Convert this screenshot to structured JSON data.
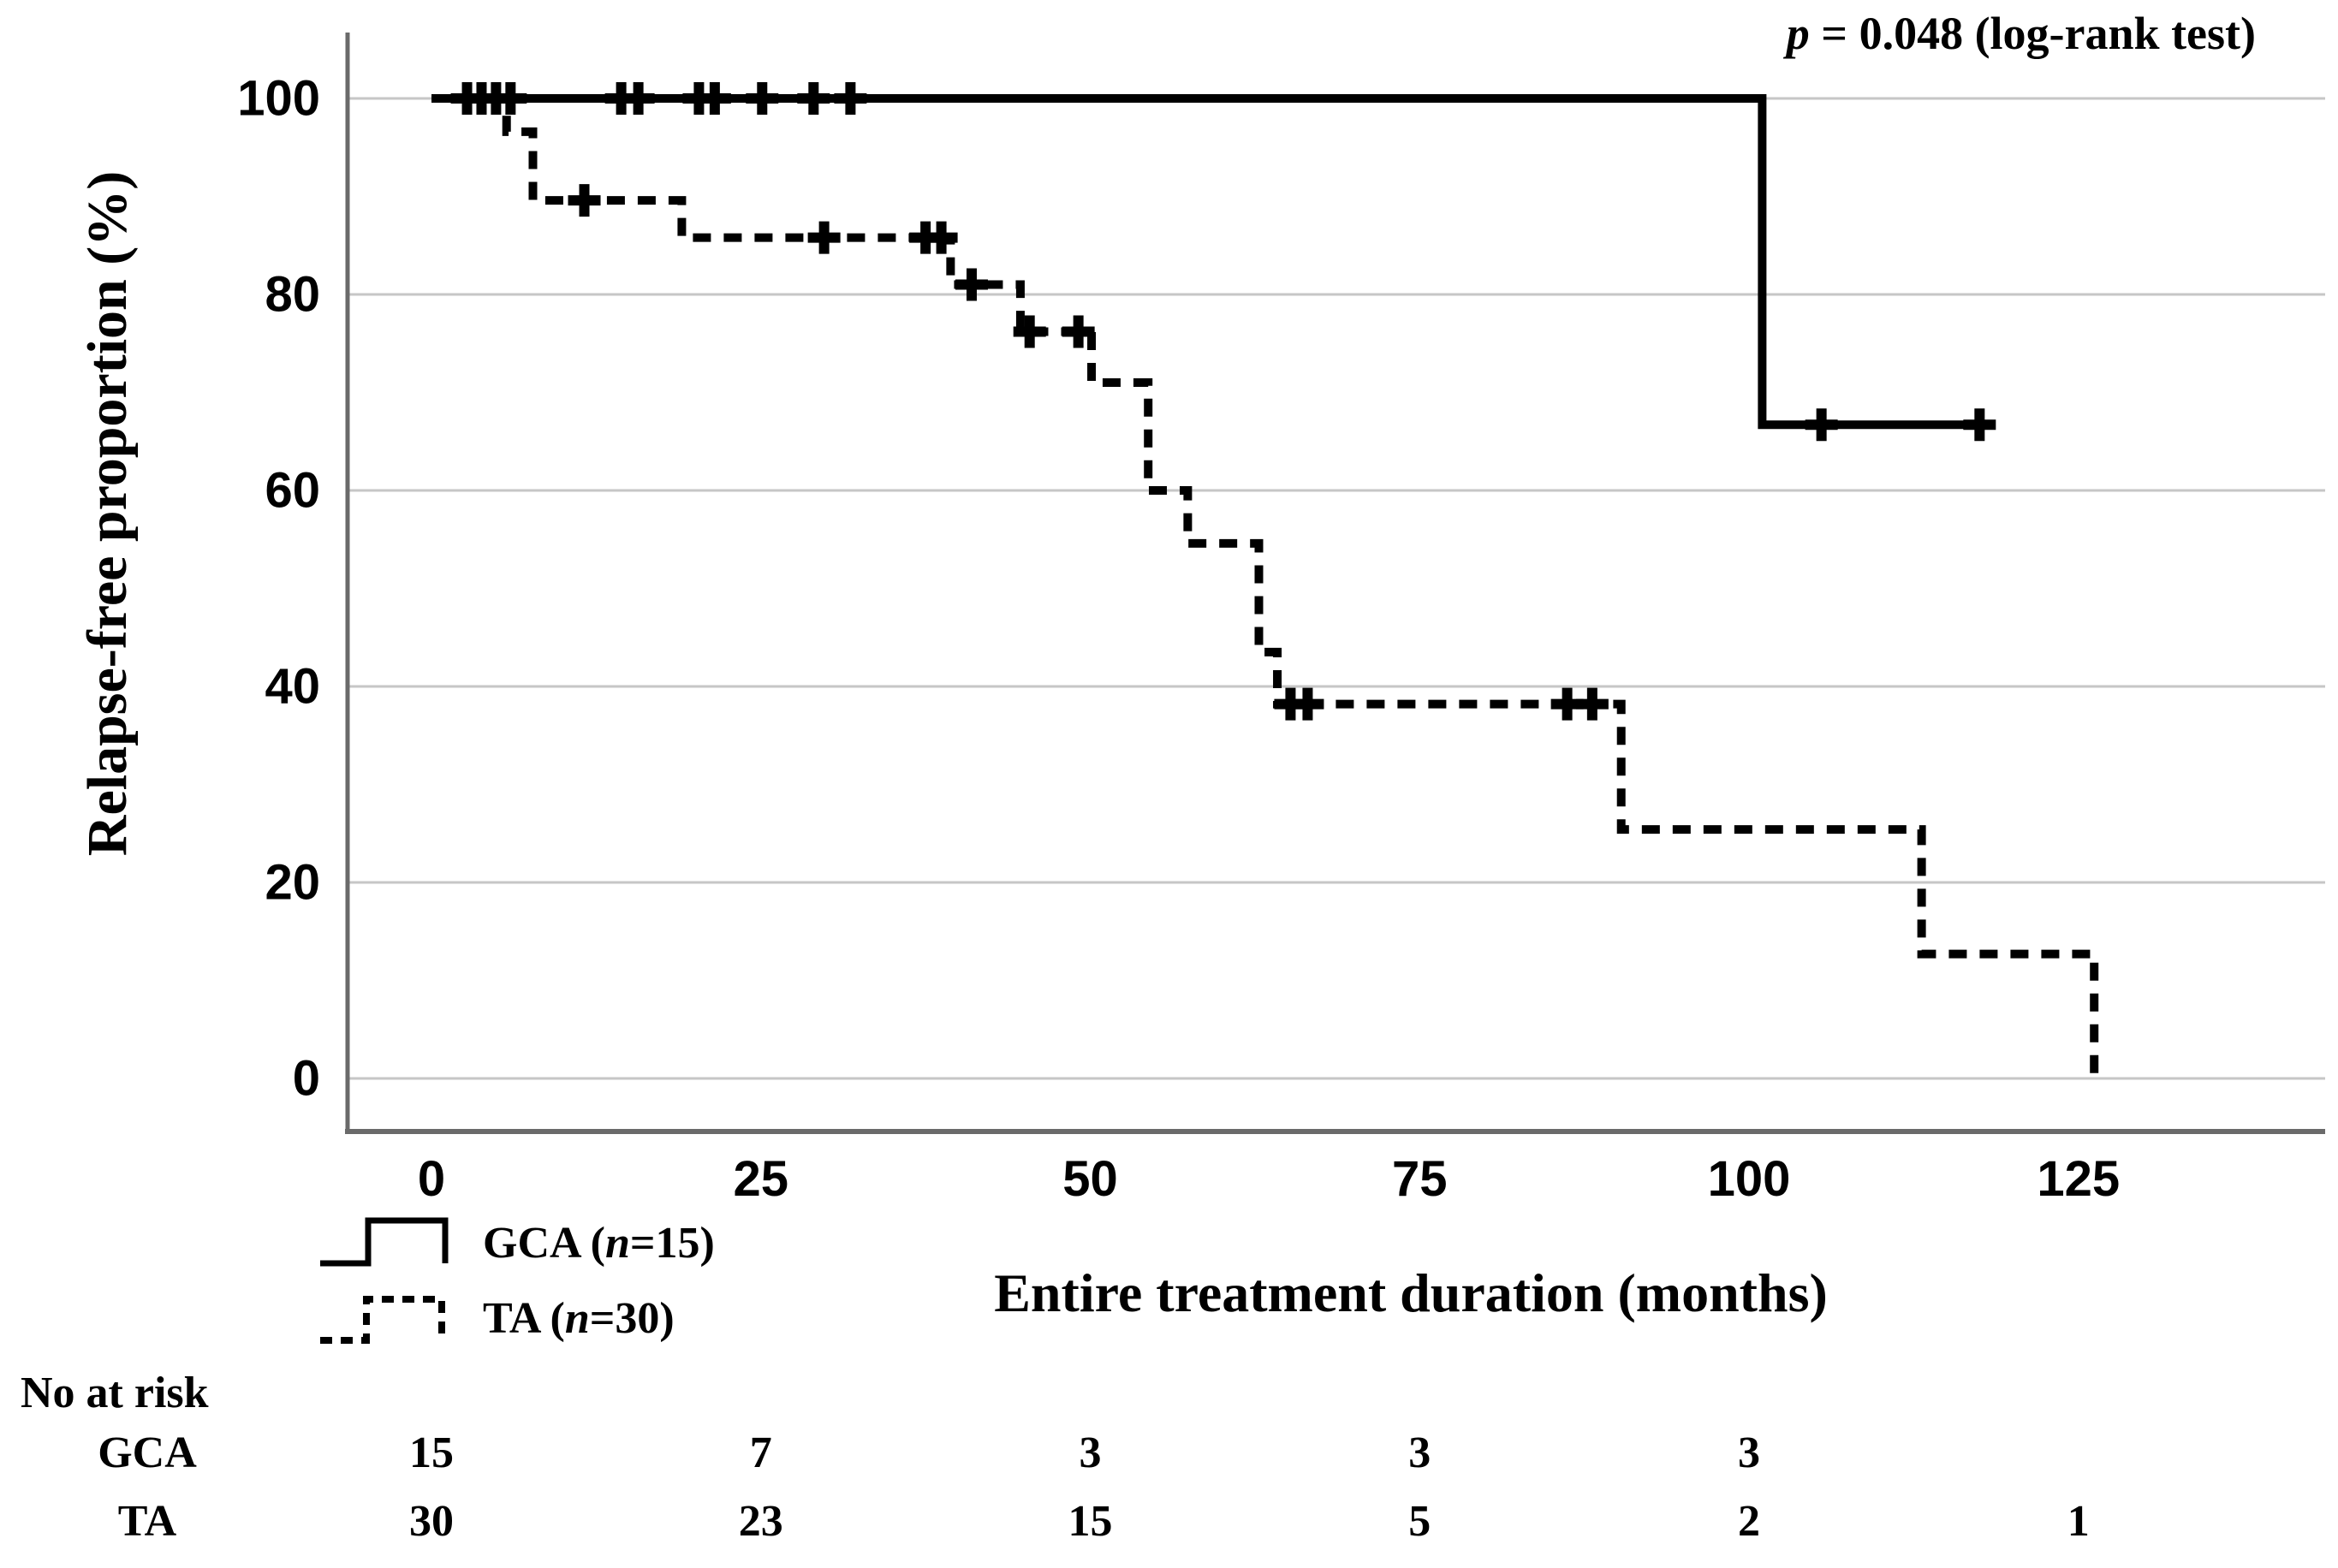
{
  "chart_data": {
    "type": "line",
    "subtype": "kaplan-meier-step-curves",
    "title": "",
    "xlabel": "Entire treatment duration (months)",
    "ylabel": "Relapse-free proportion (%)",
    "xlim_months": [
      0,
      143
    ],
    "ylim_percent": [
      0,
      100
    ],
    "x_ticks": [
      0,
      25,
      50,
      75,
      100,
      125
    ],
    "y_ticks": [
      100,
      80,
      60,
      40,
      20,
      0
    ],
    "grid": true,
    "p_value_annotation": {
      "italic": "p",
      "text": " = 0.048 (log-rank test)"
    },
    "series": [
      {
        "name": "GCA",
        "legend": {
          "prefix": "GCA (",
          "n": "n",
          "suffix": "=15)"
        },
        "n": 15,
        "style": "solid",
        "color": "#000000",
        "steps_month_percent": [
          [
            0,
            100
          ],
          [
            101,
            66.7
          ]
        ],
        "end_month": 117.5,
        "censor_marks_month_percent": [
          [
            2.7,
            100
          ],
          [
            3.8,
            100
          ],
          [
            4.9,
            100
          ],
          [
            6.0,
            100
          ],
          [
            14.4,
            100
          ],
          [
            15.7,
            100
          ],
          [
            20.3,
            100
          ],
          [
            21.5,
            100
          ],
          [
            25.1,
            100
          ],
          [
            29.0,
            100
          ],
          [
            31.8,
            100
          ],
          [
            105.5,
            66.7
          ],
          [
            117.5,
            66.7
          ]
        ]
      },
      {
        "name": "TA",
        "legend": {
          "prefix": "TA (",
          "n": "n",
          "suffix": "=30)"
        },
        "n": 30,
        "style": "dashed",
        "color": "#000000",
        "steps_month_percent": [
          [
            0,
            100
          ],
          [
            5.7,
            96.6
          ],
          [
            7.7,
            89.6
          ],
          [
            19.0,
            85.8
          ],
          [
            39.4,
            81.0
          ],
          [
            44.7,
            76.2
          ],
          [
            50.1,
            71.0
          ],
          [
            54.4,
            60.0
          ],
          [
            57.4,
            54.6
          ],
          [
            62.8,
            43.5
          ],
          [
            64.2,
            38.2
          ],
          [
            90.3,
            25.4
          ],
          [
            113.1,
            12.7
          ],
          [
            126.2,
            0
          ]
        ],
        "end_month": 126.2,
        "censor_marks_month_percent": [
          [
            11.6,
            89.6
          ],
          [
            29.8,
            85.8
          ],
          [
            37.5,
            85.8
          ],
          [
            38.7,
            85.8
          ],
          [
            41.0,
            81.0
          ],
          [
            45.4,
            76.2
          ],
          [
            49.1,
            76.2
          ],
          [
            65.2,
            38.2
          ],
          [
            66.5,
            38.2
          ],
          [
            86.2,
            38.2
          ],
          [
            88.1,
            38.2
          ]
        ]
      }
    ],
    "risk_table": {
      "title": "No at risk",
      "columns_months": [
        0,
        25,
        50,
        75,
        100,
        125
      ],
      "rows": [
        {
          "label": "GCA",
          "values": [
            "15",
            "7",
            "3",
            "3",
            "3",
            ""
          ]
        },
        {
          "label": "TA",
          "values": [
            "30",
            "23",
            "15",
            "5",
            "2",
            "1"
          ]
        }
      ]
    },
    "colors": {
      "curve": "#000000",
      "grid": "#c6c6c6",
      "axis": "#6a6a6a",
      "background": "#ffffff"
    }
  }
}
